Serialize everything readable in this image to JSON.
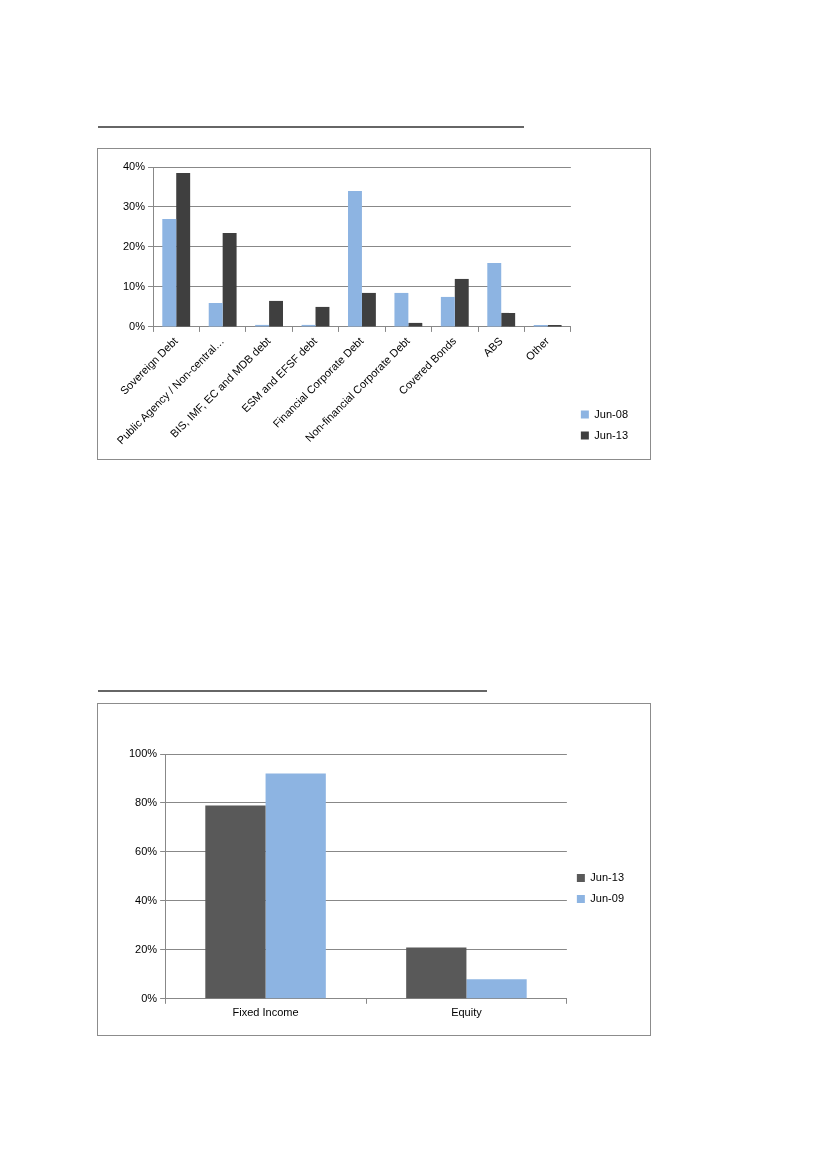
{
  "chart_data": [
    {
      "type": "bar",
      "categories": [
        "Sovereign Debt",
        "Public Agency / Non-central…",
        "BIS, IMF, EC and MDB debt",
        "ESM and EFSF debt",
        "Financial Corporate Debt",
        "Non-financial Corporate Debt",
        "Covered Bonds",
        "ABS",
        "Other"
      ],
      "series": [
        {
          "name": "Jun-08",
          "color": "#8db4e2",
          "values": [
            27,
            6,
            0,
            0,
            34,
            8.5,
            7.5,
            16,
            0
          ]
        },
        {
          "name": "Jun-13",
          "color": "#3f3f3f",
          "values": [
            38.5,
            23.5,
            6.5,
            5,
            8.5,
            1,
            12,
            3.5,
            0
          ]
        }
      ],
      "ylim": [
        0,
        40
      ],
      "yticks": [
        {
          "value": 0,
          "label": "0%"
        },
        {
          "value": 10,
          "label": "10%"
        },
        {
          "value": 20,
          "label": "20%"
        },
        {
          "value": 30,
          "label": "30%"
        },
        {
          "value": 40,
          "label": "40%"
        }
      ],
      "grid": "y",
      "legend": "bottom right"
    },
    {
      "type": "bar",
      "categories": [
        "Fixed Income",
        "Equity"
      ],
      "series": [
        {
          "name": "Jun-13",
          "color": "#595959",
          "values": [
            79,
            21
          ]
        },
        {
          "name": "Jun-09",
          "color": "#8db4e2",
          "values": [
            92,
            8
          ]
        }
      ],
      "ylim": [
        0,
        100
      ],
      "yticks": [
        {
          "value": 0,
          "label": "0%"
        },
        {
          "value": 20,
          "label": "20%"
        },
        {
          "value": 40,
          "label": "40%"
        },
        {
          "value": 60,
          "label": "60%"
        },
        {
          "value": 80,
          "label": "80%"
        },
        {
          "value": 100,
          "label": "100%"
        }
      ],
      "grid": "y",
      "legend": "right"
    }
  ]
}
